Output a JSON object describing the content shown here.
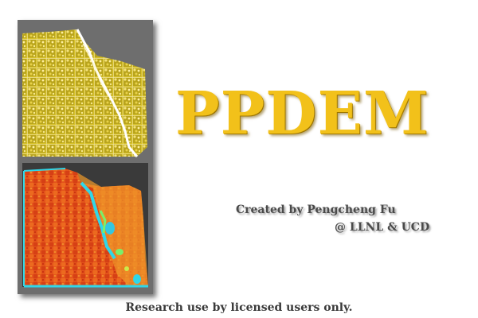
{
  "app": {
    "title": "PPDEM",
    "credit_author": "Created by Pengcheng Fu",
    "credit_org": "@ LLNL & UCD",
    "notice": "Research use by licensed users only."
  },
  "colors": {
    "title_gold": "#f2c11a",
    "panel_gray": "#6e6e6e",
    "particle_yellow": "#e8d23a",
    "field_orange": "#e2521a",
    "field_cyan": "#2fd7e8"
  },
  "images": [
    {
      "name": "particle-grid-image",
      "description_icon": "particle-grid"
    },
    {
      "name": "stress-field-image",
      "description_icon": "heatmap"
    }
  ]
}
